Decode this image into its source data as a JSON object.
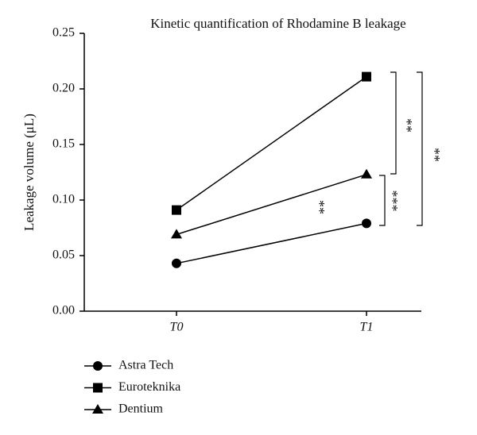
{
  "chart_data": {
    "type": "line",
    "title": "Kinetic quantification of Rhodamine B leakage",
    "y_label": "Leakage volume (μL)",
    "categories": [
      "T0",
      "T1"
    ],
    "series": [
      {
        "name": "Astra Tech",
        "color": "#000000",
        "marker": "circle",
        "values": [
          0.043,
          0.079
        ]
      },
      {
        "name": "Euroteknika",
        "color": "#000000",
        "marker": "square",
        "values": [
          0.091,
          0.211
        ]
      },
      {
        "name": "Dentium",
        "color": "#000000",
        "marker": "triangle",
        "values": [
          0.069,
          0.123
        ]
      }
    ],
    "ylim": [
      0,
      0.25
    ],
    "yticks": [
      {
        "value": 0,
        "label": "0.00"
      },
      0.05,
      {
        "value": 0.1,
        "label": "0.10"
      },
      0.15,
      {
        "value": 0.2,
        "label": "0.20"
      },
      0.25
    ],
    "annotations": [
      "**",
      "**",
      "***",
      "**"
    ],
    "legend": "bottom-left"
  }
}
